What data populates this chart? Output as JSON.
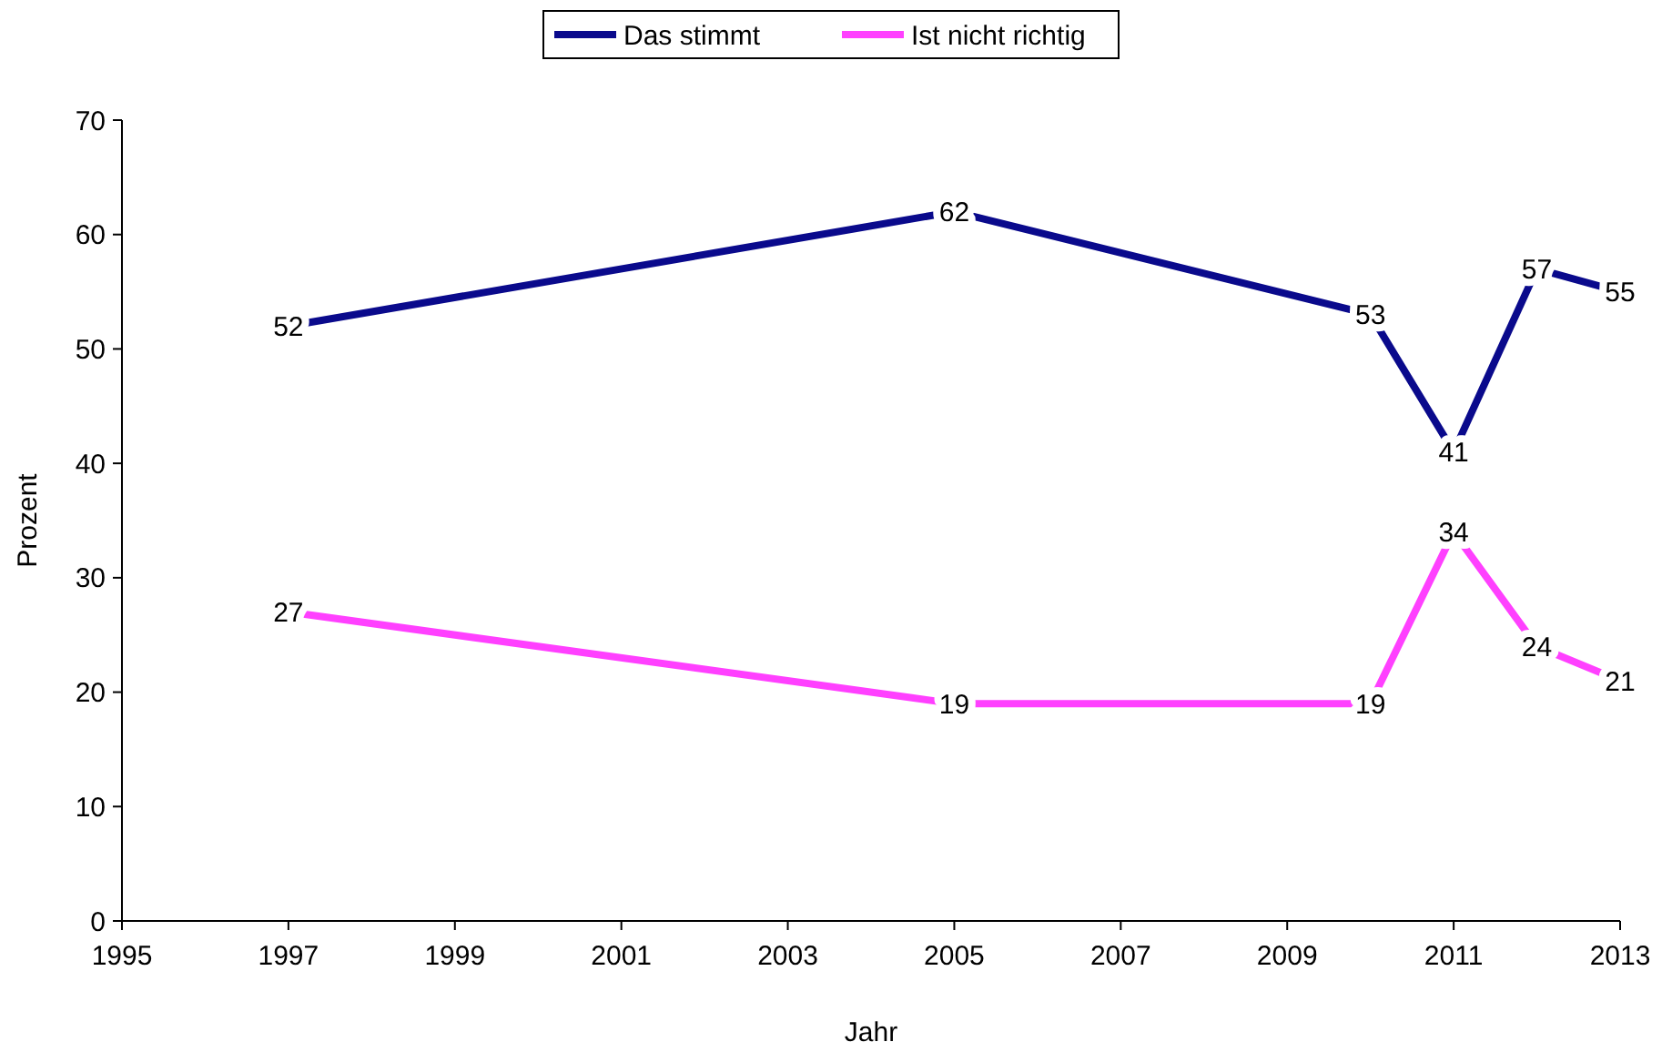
{
  "chart_data": {
    "type": "line",
    "xlabel": "Jahr",
    "ylabel": "Prozent",
    "x": [
      1997,
      2005,
      2010,
      2011,
      2012,
      2013
    ],
    "series": [
      {
        "name": "Das stimmt",
        "color": "#0a0a8c",
        "values": [
          52,
          62,
          53,
          41,
          57,
          55
        ]
      },
      {
        "name": "Ist nicht richtig",
        "color": "#ff40ff",
        "values": [
          27,
          19,
          19,
          34,
          24,
          21
        ]
      }
    ],
    "xlim": [
      1995,
      2013
    ],
    "xticks": [
      1995,
      1997,
      1999,
      2001,
      2003,
      2005,
      2007,
      2009,
      2011,
      2013
    ],
    "ylim": [
      0,
      70
    ],
    "yticks": [
      0,
      10,
      20,
      30,
      40,
      50,
      60,
      70
    ],
    "grid": false,
    "legend": "top",
    "data_labels": true,
    "line_style": "solid"
  }
}
